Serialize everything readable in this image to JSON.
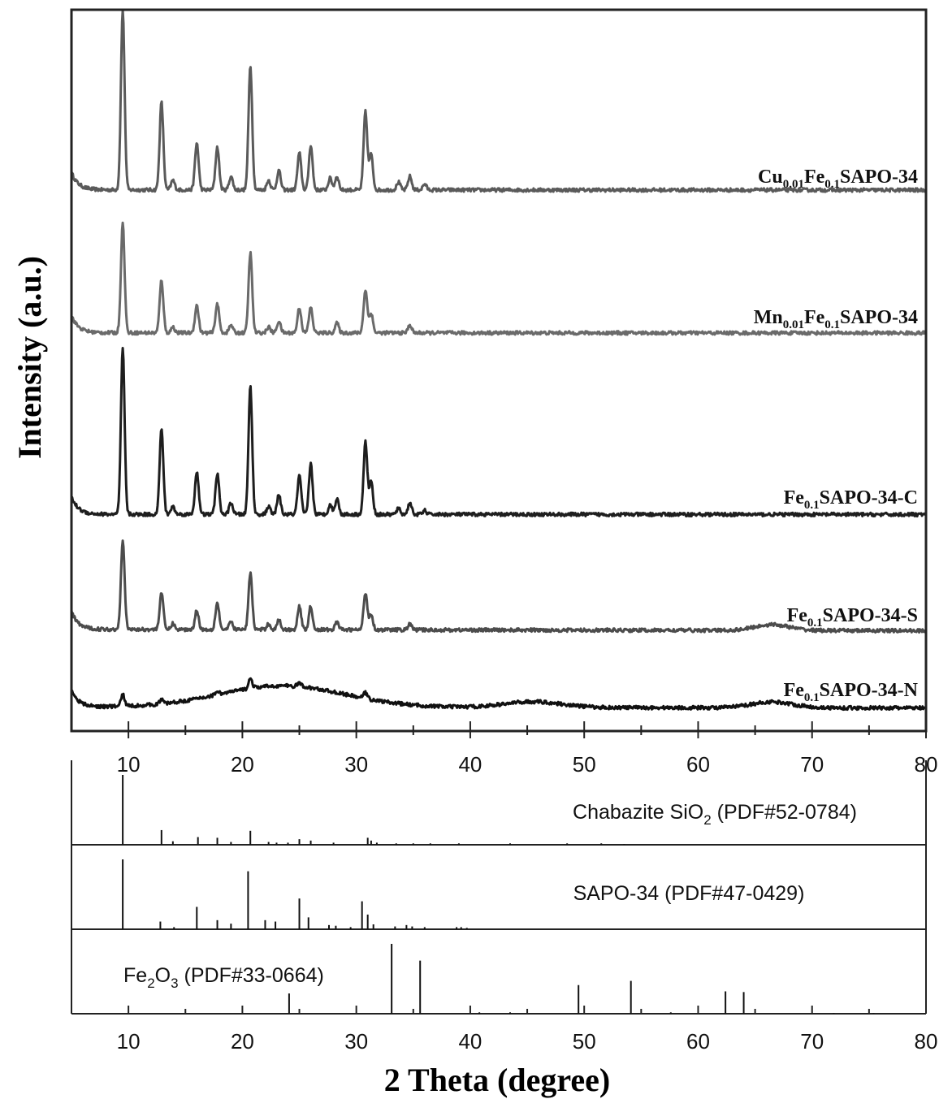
{
  "chart_data": [
    {
      "type": "line",
      "xlabel": "",
      "ylabel": "Intensity (a.u.)",
      "xlim": [
        5,
        80
      ],
      "xticks": [
        10,
        20,
        30,
        40,
        50,
        60,
        70,
        80
      ],
      "y_ticks_shown": false,
      "legend": "labels placed to the right above each curve",
      "series": [
        {
          "name_parts": [
            [
              "Cu",
              "n"
            ],
            [
              "0.01",
              "sub"
            ],
            [
              "Fe",
              "n"
            ],
            [
              "0.1",
              "sub"
            ],
            [
              "SAPO-34",
              "n"
            ]
          ],
          "color": "#5a5a5a",
          "baseline": 0.26,
          "tail_end": 0.25,
          "hump": [],
          "peaks": [
            [
              9.5,
              9.2
            ],
            [
              12.9,
              4.5
            ],
            [
              13.9,
              0.5
            ],
            [
              16.0,
              2.4
            ],
            [
              17.8,
              2.2
            ],
            [
              19.0,
              0.7
            ],
            [
              20.7,
              6.4
            ],
            [
              22.3,
              0.5
            ],
            [
              23.2,
              1.0
            ],
            [
              25.0,
              1.9
            ],
            [
              26.0,
              2.3
            ],
            [
              27.7,
              0.6
            ],
            [
              28.3,
              0.7
            ],
            [
              30.8,
              4.0
            ],
            [
              31.3,
              1.8
            ],
            [
              33.7,
              0.4
            ],
            [
              34.7,
              0.7
            ],
            [
              36.0,
              0.3
            ]
          ]
        },
        {
          "name_parts": [
            [
              "Mn",
              "n"
            ],
            [
              "0.01",
              "sub"
            ],
            [
              "Fe",
              "n"
            ],
            [
              "0.1",
              "sub"
            ],
            [
              "SAPO-34",
              "n"
            ]
          ],
          "color": "#6a6a6a",
          "baseline": 0.22,
          "tail_end": 0.21,
          "hump": [],
          "peaks": [
            [
              9.5,
              5.6
            ],
            [
              12.9,
              2.7
            ],
            [
              13.9,
              0.3
            ],
            [
              16.0,
              1.4
            ],
            [
              17.8,
              1.5
            ],
            [
              19.0,
              0.4
            ],
            [
              20.7,
              4.1
            ],
            [
              22.3,
              0.3
            ],
            [
              23.2,
              0.6
            ],
            [
              25.0,
              1.3
            ],
            [
              26.0,
              1.3
            ],
            [
              28.3,
              0.5
            ],
            [
              30.8,
              2.2
            ],
            [
              31.3,
              1.0
            ],
            [
              34.7,
              0.4
            ]
          ]
        },
        {
          "name_parts": [
            [
              "Fe",
              "n"
            ],
            [
              "0.1",
              "sub"
            ],
            [
              "SAPO-34-C",
              "n"
            ]
          ],
          "color": "#1e1e1e",
          "baseline": 0.2,
          "tail_end": 0.19,
          "hump": [],
          "peaks": [
            [
              9.5,
              8.5
            ],
            [
              12.9,
              4.4
            ],
            [
              13.9,
              0.4
            ],
            [
              16.0,
              2.2
            ],
            [
              17.8,
              2.1
            ],
            [
              19.0,
              0.6
            ],
            [
              20.7,
              6.6
            ],
            [
              22.3,
              0.4
            ],
            [
              23.2,
              1.0
            ],
            [
              25.0,
              2.0
            ],
            [
              26.0,
              2.6
            ],
            [
              27.7,
              0.5
            ],
            [
              28.3,
              0.8
            ],
            [
              30.8,
              3.7
            ],
            [
              31.3,
              1.7
            ],
            [
              33.7,
              0.3
            ],
            [
              34.7,
              0.6
            ],
            [
              36.0,
              0.2
            ]
          ]
        },
        {
          "name_parts": [
            [
              "Fe",
              "n"
            ],
            [
              "0.1",
              "sub"
            ],
            [
              "SAPO-34-S",
              "n"
            ]
          ],
          "color": "#4c4c4c",
          "baseline": 0.3,
          "tail_end": 0.23,
          "hump": [
            [
              66.5,
              1.5,
              0.3
            ]
          ],
          "peaks": [
            [
              9.5,
              4.6
            ],
            [
              12.9,
              1.9
            ],
            [
              13.9,
              0.3
            ],
            [
              16.0,
              1.0
            ],
            [
              17.8,
              1.4
            ],
            [
              19.0,
              0.4
            ],
            [
              20.7,
              2.9
            ],
            [
              22.3,
              0.3
            ],
            [
              23.2,
              0.5
            ],
            [
              25.0,
              1.2
            ],
            [
              26.0,
              1.2
            ],
            [
              28.3,
              0.4
            ],
            [
              30.8,
              1.9
            ],
            [
              31.3,
              0.8
            ],
            [
              34.7,
              0.3
            ]
          ]
        },
        {
          "name_parts": [
            [
              "Fe",
              "n"
            ],
            [
              "0.1",
              "sub"
            ],
            [
              "SAPO-34-N",
              "n"
            ]
          ],
          "color": "#111111",
          "baseline": 0.4,
          "tail_end": 0.35,
          "hump": [
            [
              23.5,
              5.5,
              1.1
            ],
            [
              45.5,
              2.5,
              0.3
            ],
            [
              66.5,
              1.8,
              0.3
            ]
          ],
          "peaks": [
            [
              9.5,
              0.6
            ],
            [
              12.9,
              0.2
            ],
            [
              17.8,
              0.2
            ],
            [
              20.7,
              0.5
            ],
            [
              25.0,
              0.2
            ],
            [
              30.8,
              0.3
            ]
          ]
        }
      ]
    },
    {
      "type": "bar",
      "xlabel": "2 Theta (degree)",
      "xlim": [
        5,
        80
      ],
      "xticks": [
        10,
        20,
        30,
        40,
        50,
        60,
        70,
        80
      ],
      "panels": [
        {
          "label_parts": [
            [
              "Chabazite SiO",
              "n"
            ],
            [
              "2",
              "sub"
            ],
            [
              " (PDF#52-0784)",
              "n"
            ]
          ],
          "lines": [
            [
              9.5,
              100
            ],
            [
              12.9,
              21
            ],
            [
              13.9,
              5
            ],
            [
              16.1,
              11
            ],
            [
              17.8,
              10
            ],
            [
              19.0,
              4
            ],
            [
              20.7,
              20
            ],
            [
              22.3,
              4
            ],
            [
              23.0,
              3
            ],
            [
              24.0,
              3
            ],
            [
              25.0,
              8
            ],
            [
              26.0,
              6
            ],
            [
              28.0,
              3
            ],
            [
              31.0,
              10
            ],
            [
              31.3,
              6
            ],
            [
              31.8,
              3
            ],
            [
              33.5,
              2
            ],
            [
              35.0,
              2
            ],
            [
              36.5,
              2
            ],
            [
              39.0,
              2
            ],
            [
              43.5,
              2
            ],
            [
              48.5,
              2
            ],
            [
              51.5,
              2
            ],
            [
              53.5,
              1
            ]
          ]
        },
        {
          "label_parts": [
            [
              "SAPO-34 (PDF#47-0429)",
              "n"
            ]
          ],
          "lines": [
            [
              9.5,
              100
            ],
            [
              12.8,
              11
            ],
            [
              14.0,
              3
            ],
            [
              16.0,
              32
            ],
            [
              17.8,
              13
            ],
            [
              19.0,
              8
            ],
            [
              20.5,
              83
            ],
            [
              22.0,
              13
            ],
            [
              22.9,
              11
            ],
            [
              25.0,
              44
            ],
            [
              25.8,
              17
            ],
            [
              27.6,
              6
            ],
            [
              28.2,
              5
            ],
            [
              29.5,
              3
            ],
            [
              30.5,
              40
            ],
            [
              31.0,
              21
            ],
            [
              31.5,
              7
            ],
            [
              33.4,
              4
            ],
            [
              34.4,
              6
            ],
            [
              34.9,
              4
            ],
            [
              36.0,
              3
            ],
            [
              38.8,
              3
            ],
            [
              39.2,
              3
            ],
            [
              39.7,
              2
            ]
          ]
        },
        {
          "label_parts": [
            [
              "Fe",
              "n"
            ],
            [
              "2",
              "sub"
            ],
            [
              "O",
              "n"
            ],
            [
              "3",
              "sub"
            ],
            [
              " (PDF#33-0664)",
              "n"
            ]
          ],
          "lines": [
            [
              24.1,
              29
            ],
            [
              33.1,
              100
            ],
            [
              35.6,
              76
            ],
            [
              40.8,
              2
            ],
            [
              43.5,
              2
            ],
            [
              49.5,
              41
            ],
            [
              54.1,
              47
            ],
            [
              57.6,
              2
            ],
            [
              62.4,
              32
            ],
            [
              64.0,
              31
            ],
            [
              71.9,
              1
            ],
            [
              75.4,
              1
            ]
          ]
        }
      ]
    }
  ]
}
